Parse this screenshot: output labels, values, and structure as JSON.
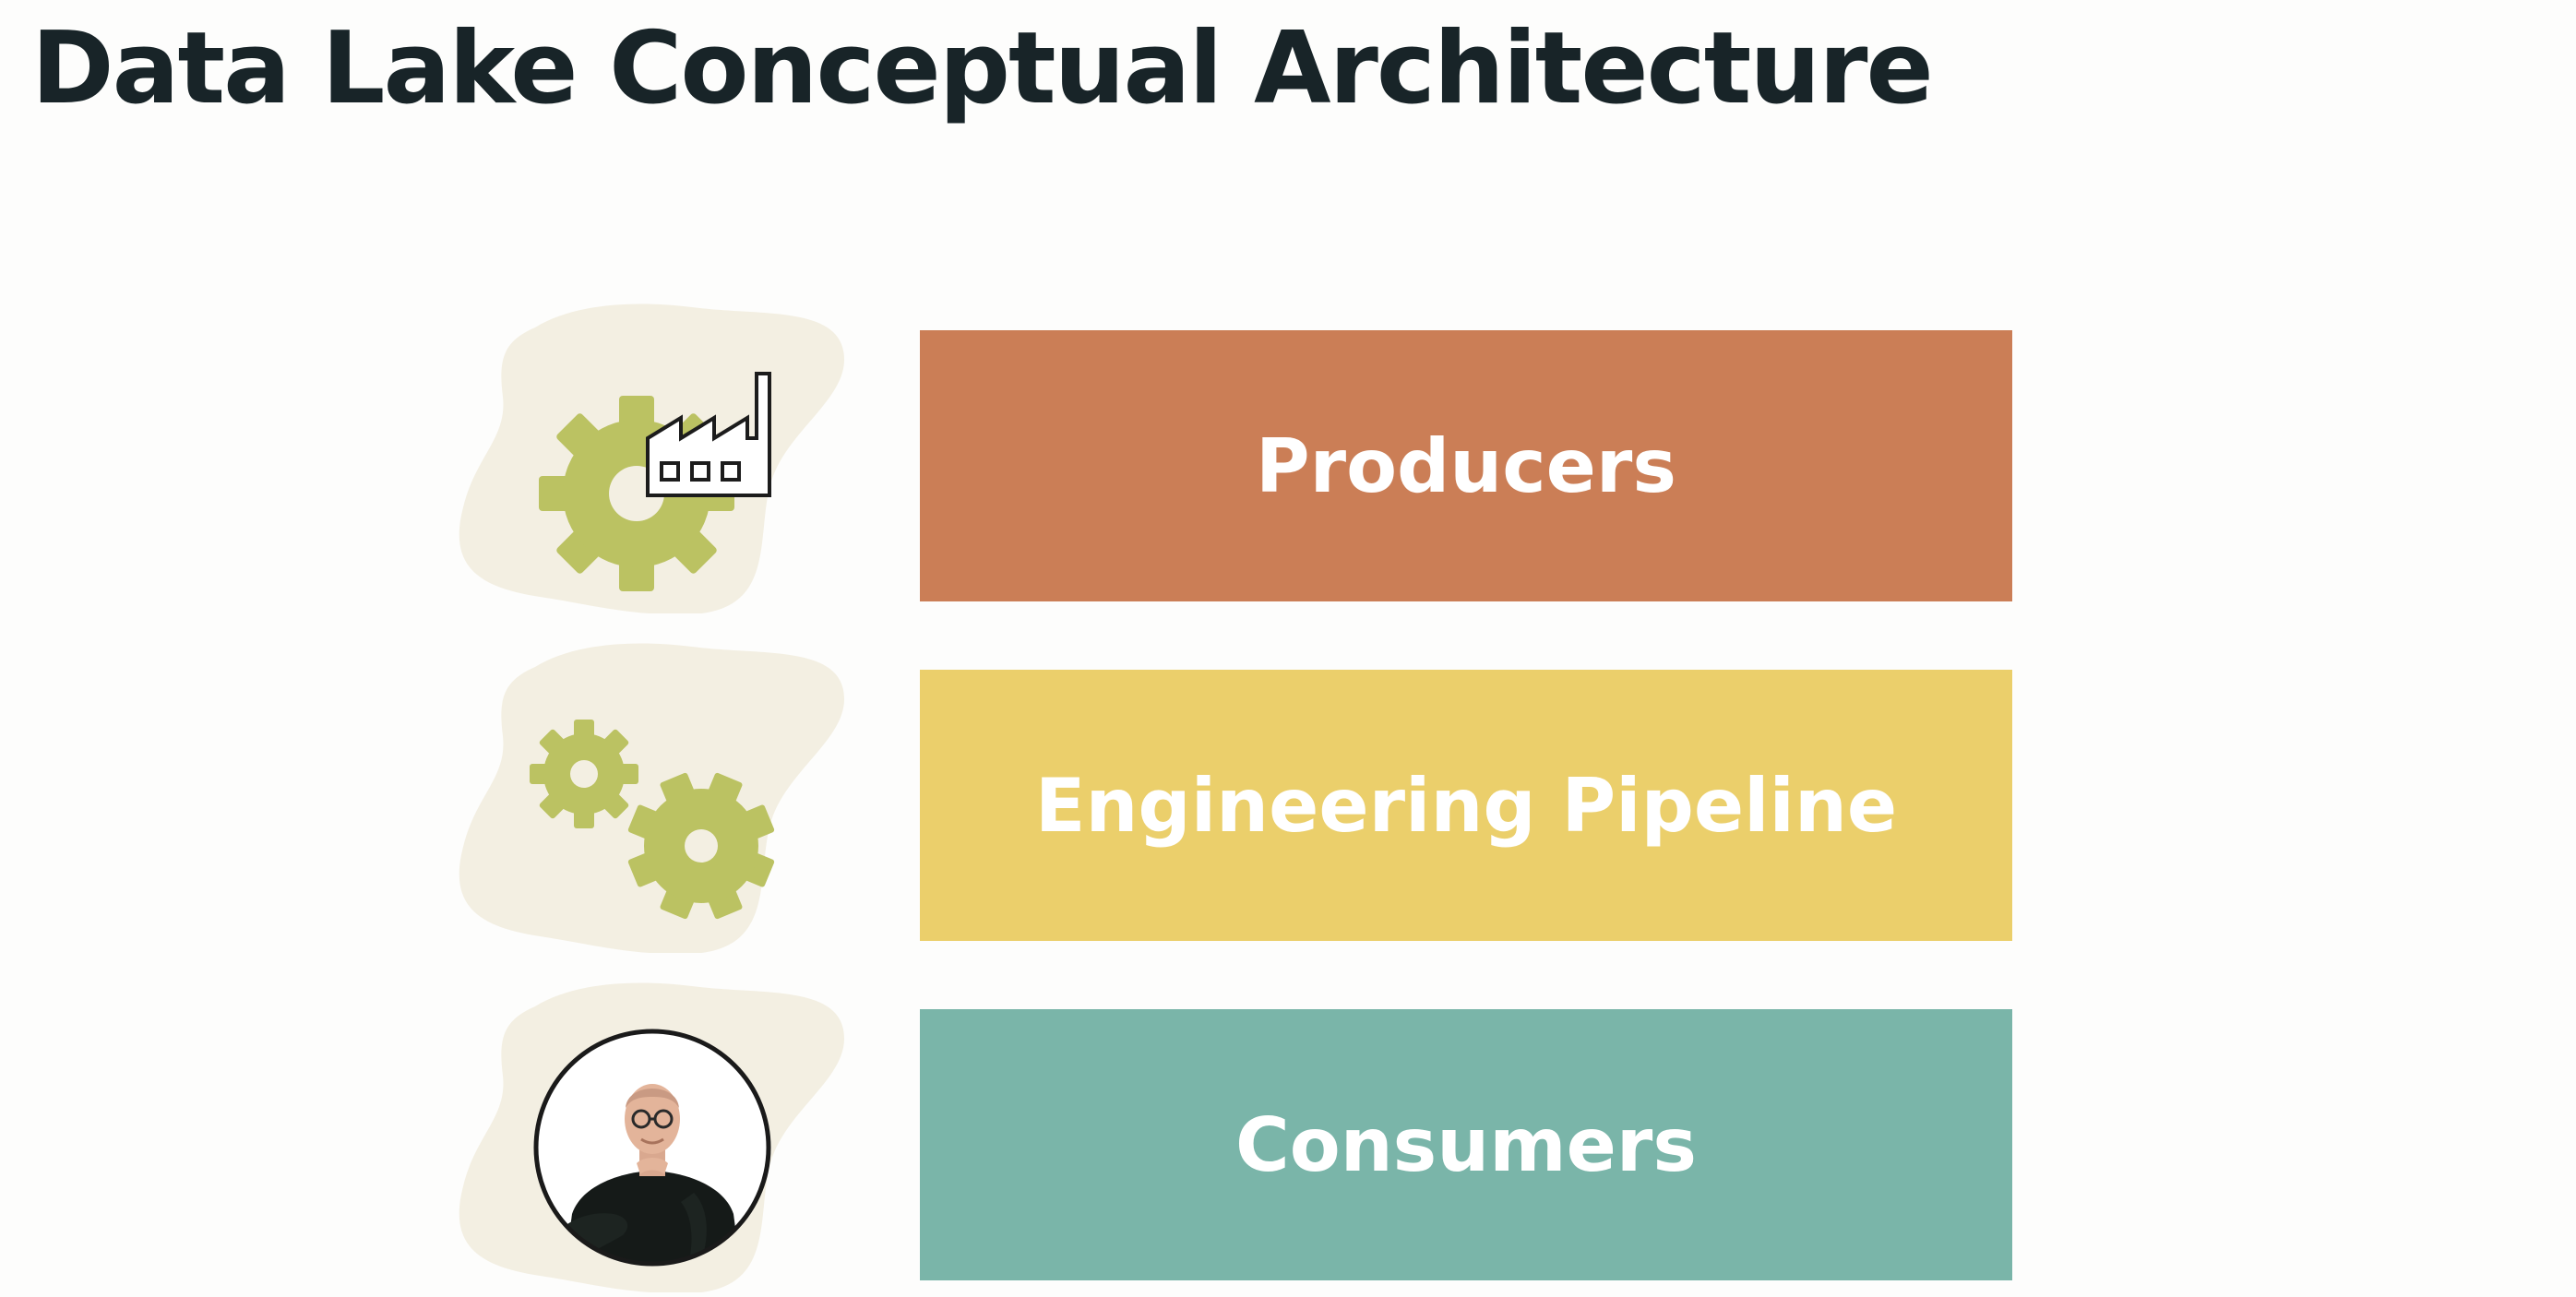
{
  "title": "Data Lake Conceptual Architecture",
  "layers": [
    {
      "label": "Producers",
      "color": "#cb7e56",
      "icon": "factory-gear-icon"
    },
    {
      "label": "Engineering Pipeline",
      "color": "#ebcf6b",
      "icon": "gears-icon"
    },
    {
      "label": "Consumers",
      "color": "#7ab5a9",
      "icon": "person-avatar-icon"
    }
  ],
  "palette": {
    "blob": "#f3efe2",
    "gear": "#bbc262",
    "title": "#182428"
  }
}
